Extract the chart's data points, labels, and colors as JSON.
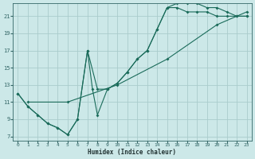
{
  "xlabel": "Humidex (Indice chaleur)",
  "xlim": [
    -0.5,
    23.5
  ],
  "ylim": [
    6.5,
    22.5
  ],
  "xticks": [
    0,
    1,
    2,
    3,
    4,
    5,
    6,
    7,
    8,
    9,
    10,
    11,
    12,
    13,
    14,
    15,
    16,
    17,
    18,
    19,
    20,
    21,
    22,
    23
  ],
  "yticks": [
    7,
    9,
    11,
    13,
    15,
    17,
    19,
    21
  ],
  "bg_color": "#cce8e8",
  "grid_color": "#aacccc",
  "line_color": "#1a6b5a",
  "line1_x": [
    0,
    1,
    2,
    3,
    4,
    5,
    6,
    7,
    7.5,
    8,
    9,
    10,
    11,
    12,
    13,
    14,
    15,
    16,
    17,
    18,
    19,
    20,
    21,
    22,
    23
  ],
  "line1_y": [
    12,
    10.5,
    9.5,
    8.5,
    8,
    7.2,
    9,
    17,
    12.5,
    9.5,
    12.5,
    13.2,
    14.5,
    16,
    17,
    19.5,
    22,
    22,
    21.5,
    21.5,
    21.5,
    21,
    21,
    21,
    21
  ],
  "line2_x": [
    0,
    1,
    2,
    3,
    4,
    5,
    6,
    7,
    8,
    9,
    10,
    11,
    12,
    13,
    14,
    15,
    16,
    17,
    18,
    19,
    20,
    21,
    22,
    23
  ],
  "line2_y": [
    12,
    10.5,
    9.5,
    8.5,
    8,
    7.2,
    9,
    17,
    12.5,
    12.5,
    13.2,
    14.5,
    16,
    17,
    19.5,
    22,
    22.5,
    22.5,
    22.5,
    22,
    22,
    21.5,
    21,
    21
  ],
  "line3_x": [
    1,
    5,
    10,
    15,
    20,
    23
  ],
  "line3_y": [
    11,
    11,
    13,
    16,
    20,
    21.5
  ]
}
